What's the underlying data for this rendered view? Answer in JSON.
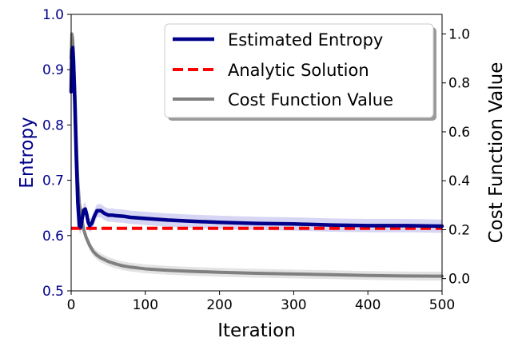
{
  "chart_data": {
    "type": "line",
    "xlabel": "Iteration",
    "ylabel_left": "Entropy",
    "ylabel_right": "Cost Function Value",
    "xlim": [
      0,
      500
    ],
    "ylim_left": [
      0.5,
      1.0
    ],
    "ylim_right": [
      -0.05,
      1.08
    ],
    "x_ticks": [
      0,
      100,
      200,
      300,
      400,
      500
    ],
    "x_tick_labels": [
      "0",
      "100",
      "200",
      "300",
      "400",
      "500"
    ],
    "y_left_ticks": [
      0.5,
      0.6,
      0.7,
      0.8,
      0.9,
      1.0
    ],
    "y_left_tick_labels": [
      "0.5",
      "0.6",
      "0.7",
      "0.8",
      "0.9",
      "1.0"
    ],
    "y_right_ticks": [
      0.0,
      0.2,
      0.4,
      0.6,
      0.8,
      1.0
    ],
    "y_right_tick_labels": [
      "0.0",
      "0.2",
      "0.4",
      "0.6",
      "0.8",
      "1.0"
    ],
    "colors": {
      "entropy": "#00008b",
      "entropy_band": "#c8c8f0",
      "analytic": "#ff0000",
      "cost": "#808080",
      "cost_band": "#d9d9d9",
      "left_axis_label": "#00008b"
    },
    "legend": {
      "placement": "top-right",
      "entries": [
        "Estimated Entropy",
        "Analytic Solution",
        "Cost Function Value"
      ]
    },
    "series": [
      {
        "name": "Estimated Entropy",
        "axis": "left",
        "style": "solid",
        "band": 0.012,
        "x": [
          0,
          1,
          2,
          3,
          5,
          7,
          9,
          11,
          13,
          15,
          17,
          19,
          21,
          23,
          25,
          28,
          31,
          35,
          40,
          45,
          50,
          55,
          60,
          70,
          80,
          100,
          130,
          160,
          200,
          250,
          300,
          350,
          400,
          450,
          500
        ],
        "y": [
          0.86,
          0.935,
          0.94,
          0.92,
          0.84,
          0.74,
          0.66,
          0.618,
          0.615,
          0.632,
          0.646,
          0.648,
          0.638,
          0.624,
          0.618,
          0.622,
          0.634,
          0.645,
          0.645,
          0.64,
          0.637,
          0.637,
          0.636,
          0.635,
          0.633,
          0.631,
          0.628,
          0.626,
          0.624,
          0.622,
          0.621,
          0.619,
          0.618,
          0.618,
          0.617
        ]
      },
      {
        "name": "Analytic Solution",
        "axis": "left",
        "style": "dashed",
        "x": [
          0,
          500
        ],
        "y": [
          0.613,
          0.613
        ]
      },
      {
        "name": "Cost Function Value",
        "axis": "right",
        "style": "solid",
        "band": 0.018,
        "x": [
          0,
          1,
          2,
          3,
          5,
          7,
          9,
          11,
          14,
          17,
          20,
          25,
          30,
          35,
          40,
          50,
          60,
          70,
          80,
          100,
          130,
          160,
          200,
          250,
          300,
          350,
          400,
          450,
          500
        ],
        "y": [
          0.9,
          1.0,
          0.98,
          0.92,
          0.76,
          0.55,
          0.4,
          0.31,
          0.25,
          0.2,
          0.17,
          0.135,
          0.11,
          0.095,
          0.085,
          0.07,
          0.06,
          0.052,
          0.047,
          0.04,
          0.034,
          0.03,
          0.026,
          0.022,
          0.019,
          0.016,
          0.013,
          0.011,
          0.01
        ]
      }
    ]
  }
}
